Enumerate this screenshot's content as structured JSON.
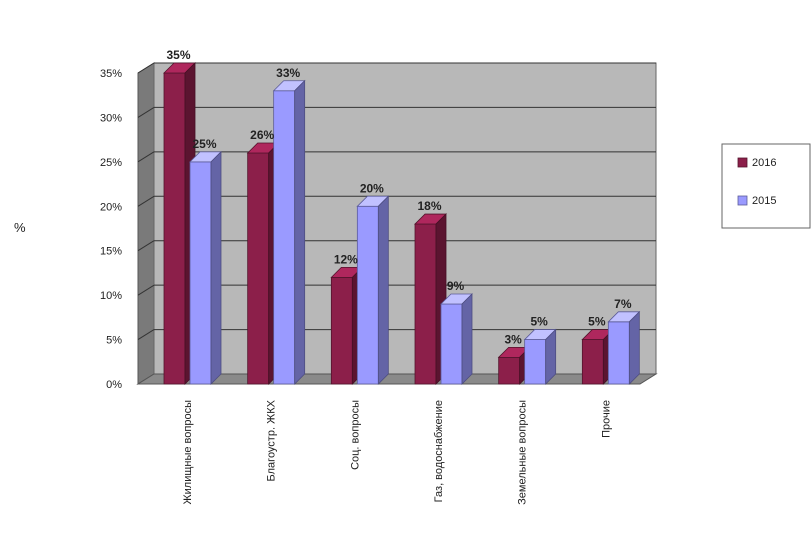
{
  "chart_data": {
    "type": "bar",
    "ylabel": "%",
    "ylim": [
      0,
      35
    ],
    "yticks": [
      "0%",
      "5%",
      "10%",
      "15%",
      "20%",
      "25%",
      "30%",
      "35%"
    ],
    "grid": true,
    "legend_position": "right",
    "categories": [
      "Жилищные вопросы",
      "Благоустр. ЖКХ",
      "Соц. вопросы",
      "Газ, водоснабжение",
      "Земельные вопросы",
      "Прочие"
    ],
    "series": [
      {
        "name": "2016",
        "color": "#8c1f4a",
        "values": [
          35,
          26,
          12,
          18,
          3,
          5
        ]
      },
      {
        "name": "2015",
        "color": "#9a9aff",
        "values": [
          25,
          33,
          20,
          9,
          5,
          7
        ]
      }
    ],
    "data_labels": [
      [
        "35%",
        "26%",
        "12%",
        "18%",
        "3%",
        "5%"
      ],
      [
        "25%",
        "33%",
        "20%",
        "9%",
        "5%",
        "7%"
      ]
    ]
  }
}
